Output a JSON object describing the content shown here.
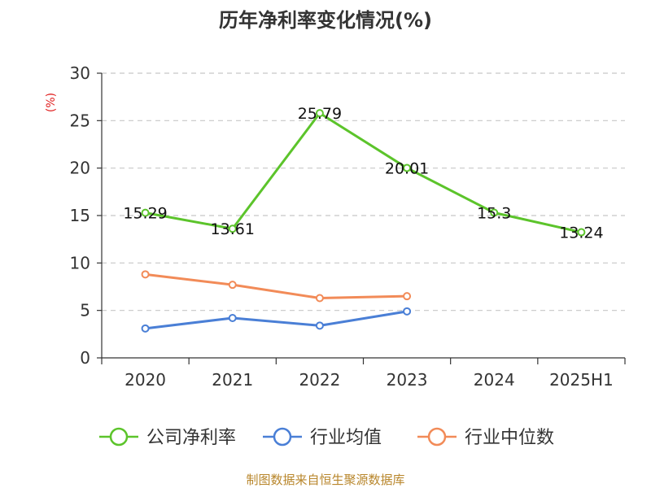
{
  "chart_data": {
    "type": "line",
    "title": "历年净利率变化情况(%)",
    "ylabel": "(%)",
    "xlabel": "",
    "ylim": [
      0,
      30
    ],
    "yticks": [
      0,
      5,
      10,
      15,
      20,
      25,
      30
    ],
    "categories": [
      "2020",
      "2021",
      "2022",
      "2023",
      "2024",
      "2025H1"
    ],
    "grid": true,
    "legend_position": "bottom",
    "series": [
      {
        "name": "公司净利率",
        "color": "#5cc42b",
        "values": [
          15.29,
          13.61,
          25.79,
          20.01,
          15.3,
          13.24
        ],
        "labels": [
          "15.29",
          "13.61",
          "25.79",
          "20.01",
          "15.3",
          "13.24"
        ]
      },
      {
        "name": "行业均值",
        "color": "#4a7fd6",
        "values": [
          3.1,
          4.2,
          3.4,
          4.9,
          null,
          null
        ]
      },
      {
        "name": "行业中位数",
        "color": "#f28b58",
        "values": [
          8.8,
          7.7,
          6.3,
          6.5,
          null,
          null
        ]
      }
    ]
  },
  "footer": {
    "source": "制图数据来自恒生聚源数据库"
  }
}
